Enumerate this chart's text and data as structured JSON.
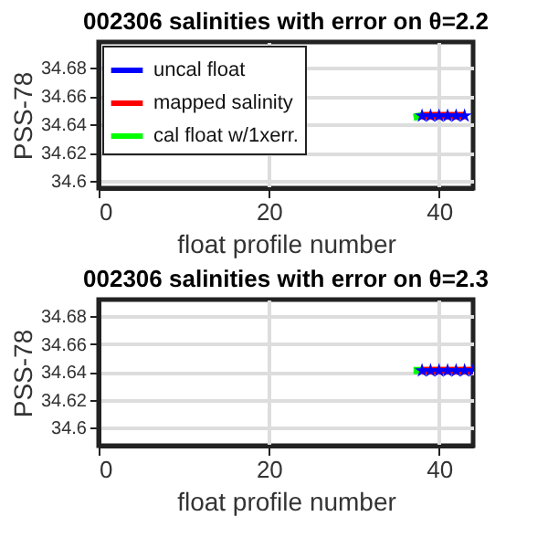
{
  "chart_data": [
    {
      "type": "line",
      "title": "002306 salinities with error on θ=2.2",
      "xlabel": "float profile number",
      "ylabel": "PSS-78",
      "xlim": [
        0,
        44
      ],
      "ylim": [
        34.595,
        34.698
      ],
      "xticks": [
        0,
        20,
        40
      ],
      "yticks": [
        34.6,
        34.62,
        34.64,
        34.66,
        34.68
      ],
      "grid": true,
      "legend": "top left",
      "series": [
        {
          "name": "uncal float",
          "color": "#0000ff",
          "marker": "star",
          "x": [
            38,
            39,
            40,
            41,
            42,
            43
          ],
          "values": [
            34.646,
            34.646,
            34.646,
            34.646,
            34.646,
            34.646
          ]
        },
        {
          "name": "mapped salinity",
          "color": "#ff0000",
          "x": [
            38,
            39,
            40,
            41,
            42,
            43
          ],
          "values": [
            34.646,
            34.646,
            34.646,
            34.646,
            34.646,
            34.646
          ],
          "lower": [
            34.643,
            34.643,
            34.643,
            34.643,
            34.643,
            34.643
          ],
          "upper": [
            34.649,
            34.649,
            34.649,
            34.649,
            34.649,
            34.649
          ]
        },
        {
          "name": "cal float w/1xerr.",
          "color": "#00ff00",
          "x": [
            37,
            38
          ],
          "values": [
            34.645,
            34.646
          ]
        }
      ]
    },
    {
      "type": "line",
      "title": "002306 salinities with error on θ=2.3",
      "xlabel": "float profile number",
      "ylabel": "PSS-78",
      "xlim": [
        0,
        44
      ],
      "ylim": [
        34.587,
        34.692
      ],
      "xticks": [
        0,
        20,
        40
      ],
      "yticks": [
        34.6,
        34.62,
        34.64,
        34.66,
        34.68
      ],
      "grid": true,
      "legend": "top left",
      "series": [
        {
          "name": "uncal float",
          "color": "#0000ff",
          "marker": "star",
          "x": [
            38,
            39,
            40,
            41,
            42,
            43,
            44
          ],
          "values": [
            34.641,
            34.641,
            34.641,
            34.641,
            34.641,
            34.641,
            34.641
          ]
        },
        {
          "name": "mapped salinity",
          "color": "#ff0000",
          "x": [
            38,
            39,
            40,
            41,
            42,
            43,
            44
          ],
          "values": [
            34.641,
            34.641,
            34.641,
            34.641,
            34.641,
            34.641,
            34.641
          ],
          "lower": [
            34.638,
            34.638,
            34.638,
            34.638,
            34.638,
            34.638,
            34.638
          ],
          "upper": [
            34.644,
            34.644,
            34.644,
            34.644,
            34.644,
            34.644,
            34.644
          ]
        },
        {
          "name": "cal float w/1xerr.",
          "color": "#00ff00",
          "x": [
            37,
            38
          ],
          "values": [
            34.641,
            34.641
          ]
        }
      ]
    }
  ]
}
